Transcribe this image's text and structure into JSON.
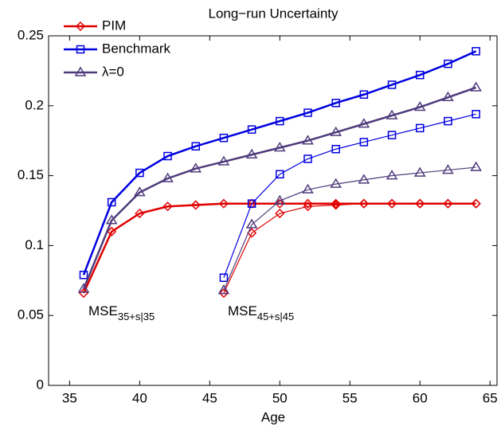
{
  "chart_data": {
    "type": "line",
    "title": "Long−run Uncertainty",
    "xlabel": "Age",
    "x": [
      36,
      38,
      40,
      42,
      44,
      46,
      48,
      50,
      52,
      54,
      56,
      58,
      60,
      62,
      64
    ],
    "xlim": [
      33.5,
      65.5
    ],
    "xticks": [
      35,
      40,
      45,
      50,
      55,
      60,
      65
    ],
    "ylim": [
      0,
      0.25
    ],
    "yticks": [
      0,
      0.05,
      0.1,
      0.15,
      0.2,
      0.25
    ],
    "legend": "upper left",
    "series": [
      {
        "name": "PIM",
        "color": "#e00000",
        "marker": "diamond",
        "line_width": 2.5,
        "values": [
          0.066,
          0.11,
          0.123,
          0.128,
          0.129,
          0.13,
          0.13,
          0.13,
          0.13,
          0.13,
          0.13,
          0.13,
          0.13,
          0.13,
          0.13
        ]
      },
      {
        "name": "Benchmark",
        "color": "#0000e0",
        "marker": "square",
        "line_width": 2.5,
        "values": [
          0.079,
          0.131,
          0.152,
          0.164,
          0.171,
          0.177,
          0.183,
          0.189,
          0.195,
          0.202,
          0.208,
          0.215,
          0.222,
          0.23,
          0.239
        ]
      },
      {
        "name": "λ=0",
        "color": "#4e3b7c",
        "marker": "triangle",
        "line_width": 2.5,
        "values": [
          0.069,
          0.118,
          0.138,
          0.148,
          0.155,
          0.16,
          0.165,
          0.17,
          0.175,
          0.181,
          0.187,
          0.193,
          0.199,
          0.206,
          0.213
        ]
      },
      {
        "color": "#e00000",
        "marker": "diamond",
        "line_width": 1.2,
        "values": [
          null,
          null,
          null,
          null,
          null,
          0.066,
          0.109,
          0.123,
          0.128,
          0.129,
          0.13,
          0.13,
          0.13,
          0.13,
          0.13
        ]
      },
      {
        "color": "#0000e0",
        "marker": "square",
        "line_width": 1.2,
        "values": [
          null,
          null,
          null,
          null,
          null,
          0.077,
          0.13,
          0.151,
          0.162,
          0.169,
          0.174,
          0.179,
          0.184,
          0.189,
          0.194
        ]
      },
      {
        "color": "#4e3b7c",
        "marker": "triangle",
        "line_width": 1.2,
        "values": [
          null,
          null,
          null,
          null,
          null,
          0.068,
          0.115,
          0.132,
          0.14,
          0.144,
          0.147,
          0.15,
          0.152,
          0.154,
          0.156
        ]
      }
    ],
    "annotations": [
      {
        "text": "MSE",
        "subscript": "35+s|35"
      },
      {
        "text": "MSE",
        "subscript": "45+s|45"
      }
    ]
  }
}
